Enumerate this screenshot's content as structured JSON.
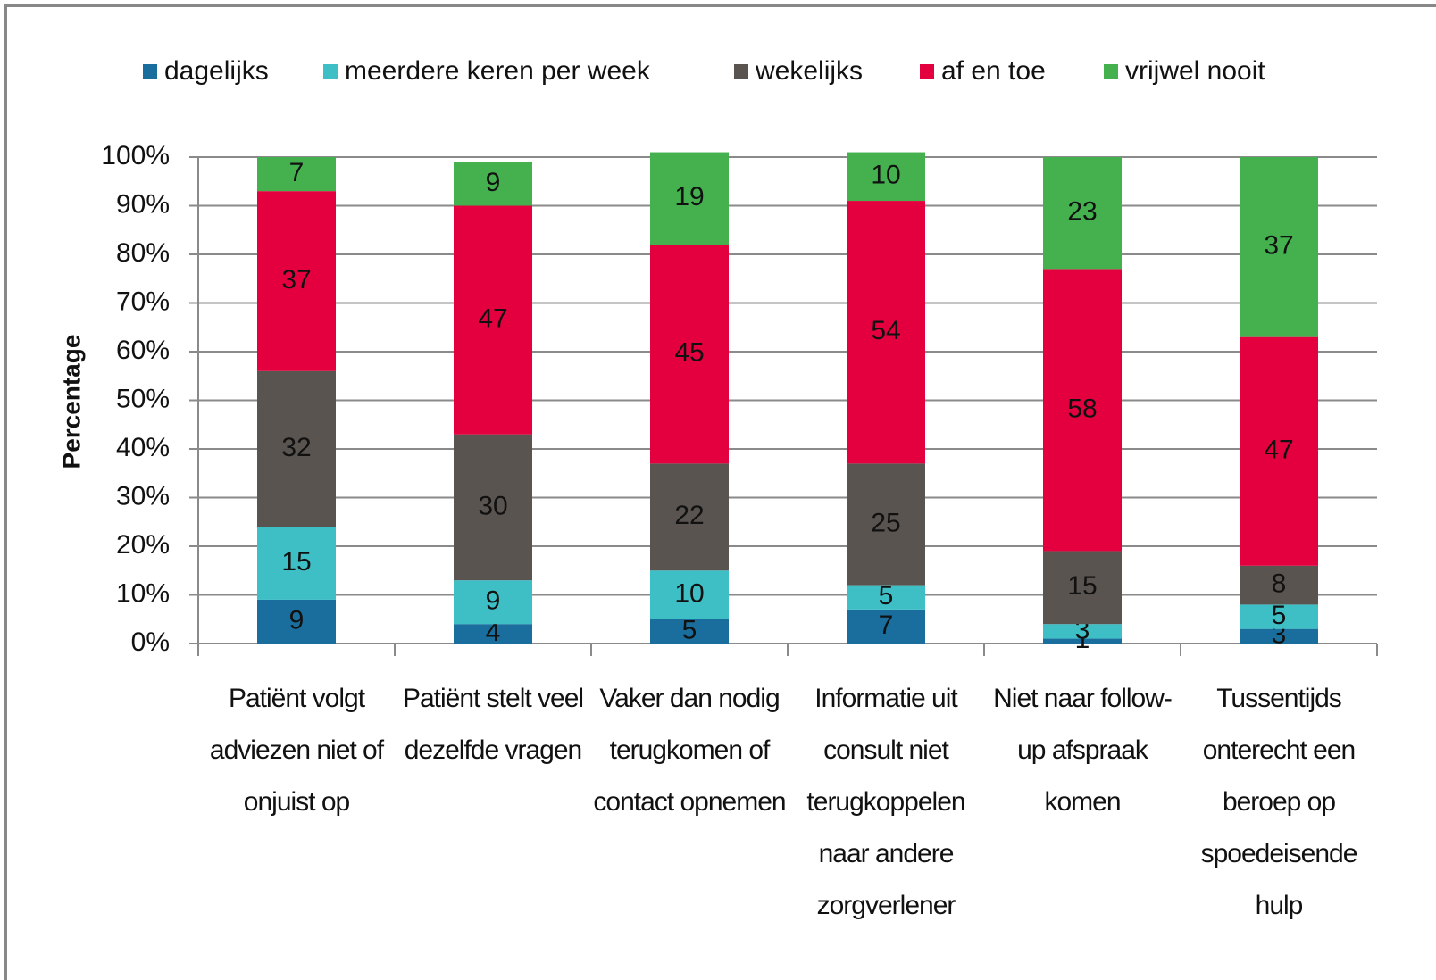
{
  "chart_data": {
    "type": "stacked_bar",
    "y_label": "Percentage",
    "categories": [
      "Patiënt volgt adviezen niet of onjuist op",
      "Patiënt stelt veel dezelfde vragen",
      "Vaker dan nodig terugkomen of contact opnemen",
      "Informatie uit consult niet terugkoppelen naar andere zorgverlener",
      "Niet naar follow-up afspraak komen",
      "Tussentijds onterecht een beroep op spoedeisende hulp"
    ],
    "series": [
      {
        "name": "dagelijks",
        "color": "#1a6e9e",
        "values": [
          9,
          4,
          5,
          7,
          1,
          3
        ]
      },
      {
        "name": "meerdere keren per week",
        "color": "#3ebfc6",
        "values": [
          15,
          9,
          10,
          5,
          3,
          5
        ]
      },
      {
        "name": "wekelijks",
        "color": "#5a5450",
        "values": [
          32,
          30,
          22,
          25,
          15,
          8
        ]
      },
      {
        "name": "af en toe",
        "color": "#e4003f",
        "values": [
          37,
          47,
          45,
          54,
          58,
          47
        ]
      },
      {
        "name": "vrijwel nooit",
        "color": "#44b04e",
        "values": [
          7,
          9,
          19,
          10,
          23,
          37
        ]
      }
    ],
    "ylim": [
      0,
      100
    ],
    "yticks": [
      {
        "value": 0,
        "label": "0%"
      },
      {
        "value": 10,
        "label": "10%"
      },
      {
        "value": 20,
        "label": "20%"
      },
      {
        "value": 30,
        "label": "30%"
      },
      {
        "value": 40,
        "label": "40%"
      },
      {
        "value": 50,
        "label": "50%"
      },
      {
        "value": 60,
        "label": "60%"
      },
      {
        "value": 70,
        "label": "70%"
      },
      {
        "value": 80,
        "label": "80%"
      },
      {
        "value": 90,
        "label": "90%"
      },
      {
        "value": 100,
        "label": "100%"
      }
    ],
    "grid": true,
    "legend": "top",
    "data_labels": true
  }
}
